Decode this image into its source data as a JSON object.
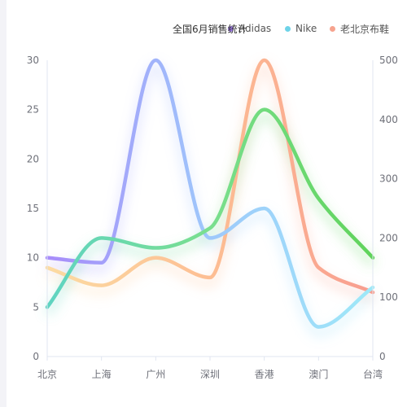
{
  "chart_data": {
    "type": "line",
    "title": "全国6月销售统计",
    "categories": [
      "北京",
      "上海",
      "广州",
      "深圳",
      "香港",
      "澳门",
      "台湾"
    ],
    "y_left": {
      "min": 0,
      "max": 30,
      "ticks": [
        0,
        5,
        10,
        15,
        20,
        25,
        30
      ]
    },
    "y_right": {
      "min": 0,
      "max": 500,
      "ticks": [
        0,
        100,
        200,
        300,
        400,
        500
      ]
    },
    "legend_position": "top-right",
    "smooth": true,
    "series": [
      {
        "name": "Adidas",
        "axis": "left",
        "values": [
          10,
          9.5,
          30,
          12,
          15,
          3,
          7
        ],
        "colors": [
          "#a78bfa",
          "#9ec8fb",
          "#9ee9f8"
        ],
        "legend_color": "#9f7aea"
      },
      {
        "name": "Nike",
        "axis": "left",
        "values": [
          5,
          12,
          11,
          13,
          25,
          16,
          10
        ],
        "colors": [
          "#5fd4c2",
          "#7adf8e",
          "#5fd35a"
        ],
        "legend_color": "#6ed3e8"
      },
      {
        "name": "老北京布鞋",
        "axis": "left",
        "values": [
          9,
          7.2,
          10,
          8,
          30,
          9,
          6.5
        ],
        "colors": [
          "#fcdba2",
          "#fdbe93",
          "#f89d8f"
        ],
        "legend_color": "#f6a38e"
      }
    ]
  }
}
